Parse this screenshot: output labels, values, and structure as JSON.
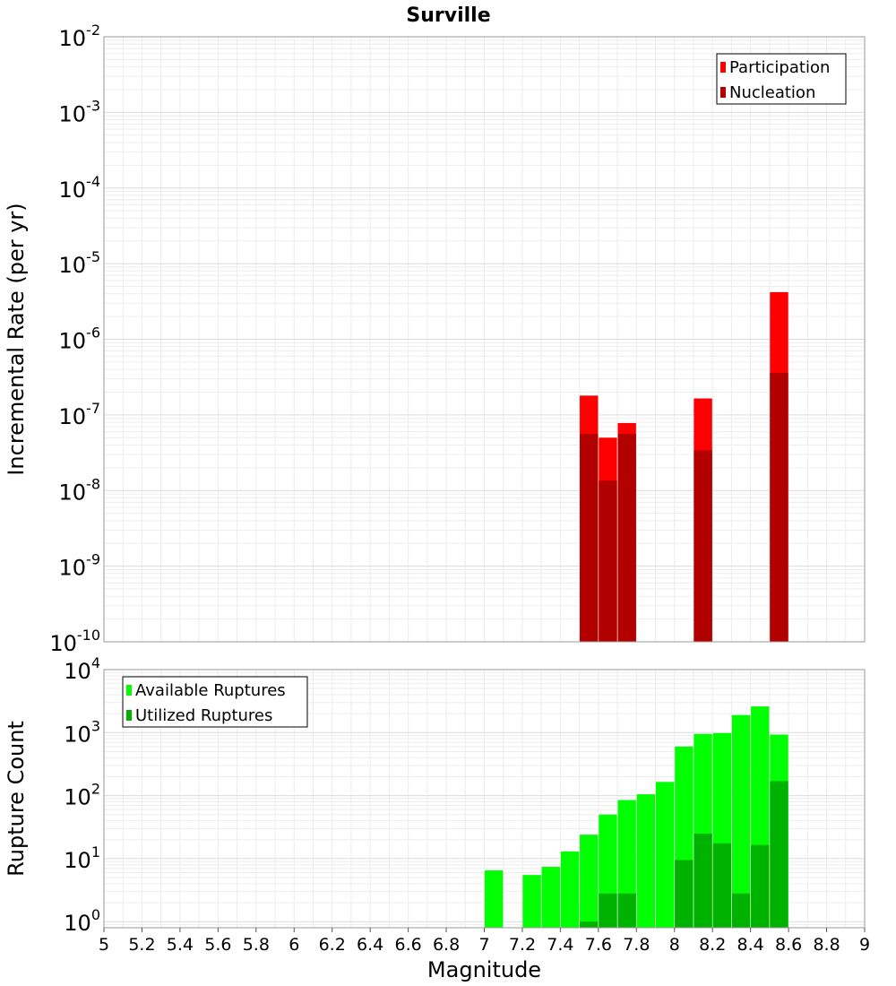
{
  "chart_data": [
    {
      "type": "bar",
      "title": "Surville",
      "xlabel": "",
      "ylabel": "Incremental Rate (per yr)",
      "yscale": "log",
      "ylim": [
        1e-10,
        0.01
      ],
      "xlim": [
        5,
        9
      ],
      "grid": true,
      "legend_position": "top-right",
      "ytick_exponents": [
        "-10",
        "-9",
        "-8",
        "-7",
        "-6",
        "-5",
        "-4",
        "-3",
        "-2"
      ],
      "tick_base": "10",
      "series": [
        {
          "name": "Participation",
          "color": "#ff0000",
          "x": [
            7.55,
            7.65,
            7.75,
            8.15,
            8.55
          ],
          "values": [
            1.8e-07,
            5e-08,
            7.8e-08,
            1.65e-07,
            4.2e-06
          ]
        },
        {
          "name": "Nucleation",
          "color": "#b20000",
          "x": [
            7.55,
            7.65,
            7.75,
            8.15,
            8.55
          ],
          "values": [
            5.6e-08,
            1.35e-08,
            5.6e-08,
            3.4e-08,
            3.6e-07
          ]
        }
      ]
    },
    {
      "type": "bar",
      "title": "",
      "xlabel": "Magnitude",
      "ylabel": "Rupture Count",
      "yscale": "log",
      "ylim": [
        0.8,
        10000
      ],
      "xlim": [
        5,
        9
      ],
      "grid": true,
      "legend_position": "top-left",
      "ytick_exponents": [
        "0",
        "1",
        "2",
        "3",
        "4"
      ],
      "tick_base": "10",
      "xticks": [
        "5",
        "5.2",
        "5.4",
        "5.6",
        "5.8",
        "6",
        "6.2",
        "6.4",
        "6.6",
        "6.8",
        "7",
        "7.2",
        "7.4",
        "7.6",
        "7.8",
        "8",
        "8.2",
        "8.4",
        "8.6",
        "8.8",
        "9"
      ],
      "series": [
        {
          "name": "Available Ruptures",
          "color": "#00ff00",
          "x": [
            7.05,
            7.25,
            7.35,
            7.45,
            7.55,
            7.65,
            7.75,
            7.85,
            7.95,
            8.05,
            8.15,
            8.25,
            8.35,
            8.45,
            8.55
          ],
          "values": [
            6.5,
            5.5,
            7.4,
            13,
            24,
            50,
            85,
            105,
            165,
            600,
            950,
            980,
            1900,
            2600,
            930
          ]
        },
        {
          "name": "Utilized Ruptures",
          "color": "#00b200",
          "x": [
            7.55,
            7.65,
            7.75,
            8.05,
            8.15,
            8.25,
            8.35,
            8.45,
            8.55
          ],
          "values": [
            1,
            2.8,
            2.8,
            9.5,
            25,
            17.5,
            2.8,
            16.5,
            170
          ]
        }
      ]
    }
  ]
}
